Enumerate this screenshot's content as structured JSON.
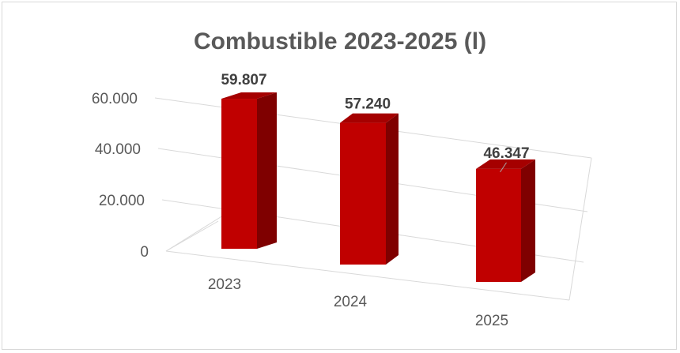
{
  "chart_data": {
    "type": "bar",
    "title": "Combustible 2023-2025 (l)",
    "categories": [
      "2023",
      "2024",
      "2025"
    ],
    "values": [
      59807,
      57240,
      46347
    ],
    "data_labels": [
      "59.807",
      "57.240",
      "46.347"
    ],
    "y_ticks": [
      "0",
      "20.000",
      "40.000",
      "60.000"
    ],
    "ylim": [
      0,
      60000
    ],
    "grid": true,
    "legend": "none",
    "bar_color": "#c00000",
    "style": "3d-perspective-column"
  }
}
